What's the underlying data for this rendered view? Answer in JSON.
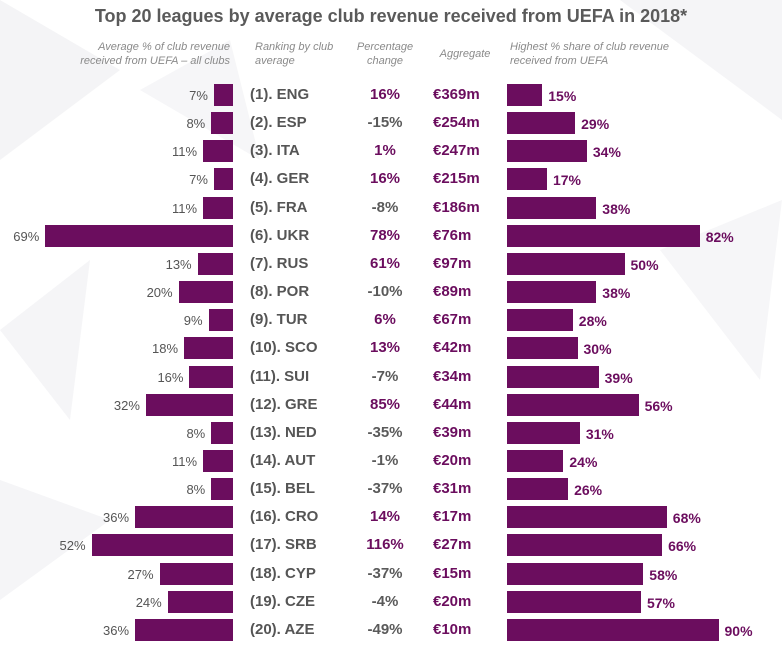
{
  "title": "Top 20 leagues by average club revenue received from UEFA in 2018*",
  "columns": {
    "avg_pct": "Average % of club revenue received from UEFA – all clubs",
    "ranking": "Ranking by club average",
    "change": "Percentage change",
    "aggregate": "Aggregate",
    "highest": "Highest % share of club revenue received from UEFA"
  },
  "colors": {
    "bar": "#6b0d5e",
    "positive": "#6b0d5e",
    "negative": "#5a5a5a"
  },
  "chart_data": {
    "type": "bar",
    "title": "Top 20 leagues by average club revenue received from UEFA in 2018*",
    "categories": [
      "(1). ENG",
      "(2). ESP",
      "(3). ITA",
      "(4). GER",
      "(5). FRA",
      "(6). UKR",
      "(7). RUS",
      "(8). POR",
      "(9). TUR",
      "(10). SCO",
      "(11). SUI",
      "(12). GRE",
      "(13). NED",
      "(14). AUT",
      "(15). BEL",
      "(16). CRO",
      "(17). SRB",
      "(18). CYP",
      "(19). CZE",
      "(20). AZE"
    ],
    "series": [
      {
        "name": "Average % of club revenue received from UEFA – all clubs",
        "values": [
          7,
          8,
          11,
          7,
          11,
          69,
          13,
          20,
          9,
          18,
          16,
          32,
          8,
          11,
          8,
          36,
          52,
          27,
          24,
          36
        ],
        "labels": [
          "7%",
          "8%",
          "11%",
          "7%",
          "11%",
          "69%",
          "13%",
          "20%",
          "9%",
          "18%",
          "16%",
          "32%",
          "8%",
          "11%",
          "8%",
          "36%",
          "52%",
          "27%",
          "24%",
          "36%"
        ]
      },
      {
        "name": "Percentage change",
        "values": [
          16,
          -15,
          1,
          16,
          -8,
          78,
          61,
          -10,
          6,
          13,
          -7,
          85,
          -35,
          -1,
          -37,
          14,
          116,
          -37,
          -4,
          -49
        ],
        "labels": [
          "16%",
          "-15%",
          "1%",
          "16%",
          "-8%",
          "78%",
          "61%",
          "-10%",
          "6%",
          "13%",
          "-7%",
          "85%",
          "-35%",
          "-1%",
          "-37%",
          "14%",
          "116%",
          "-37%",
          "-4%",
          "-49%"
        ]
      },
      {
        "name": "Aggregate",
        "labels": [
          "€369m",
          "€254m",
          "€247m",
          "€215m",
          "€186m",
          "€76m",
          "€97m",
          "€89m",
          "€67m",
          "€42m",
          "€34m",
          "€44m",
          "€39m",
          "€20m",
          "€31m",
          "€17m",
          "€27m",
          "€15m",
          "€20m",
          "€10m"
        ]
      },
      {
        "name": "Highest % share of club revenue received from UEFA",
        "values": [
          15,
          29,
          34,
          17,
          38,
          82,
          50,
          38,
          28,
          30,
          39,
          56,
          31,
          24,
          26,
          68,
          66,
          58,
          57,
          90
        ],
        "labels": [
          "15%",
          "29%",
          "34%",
          "17%",
          "38%",
          "82%",
          "50%",
          "38%",
          "28%",
          "30%",
          "39%",
          "56%",
          "31%",
          "24%",
          "26%",
          "68%",
          "66%",
          "58%",
          "57%",
          "90%"
        ]
      }
    ]
  }
}
